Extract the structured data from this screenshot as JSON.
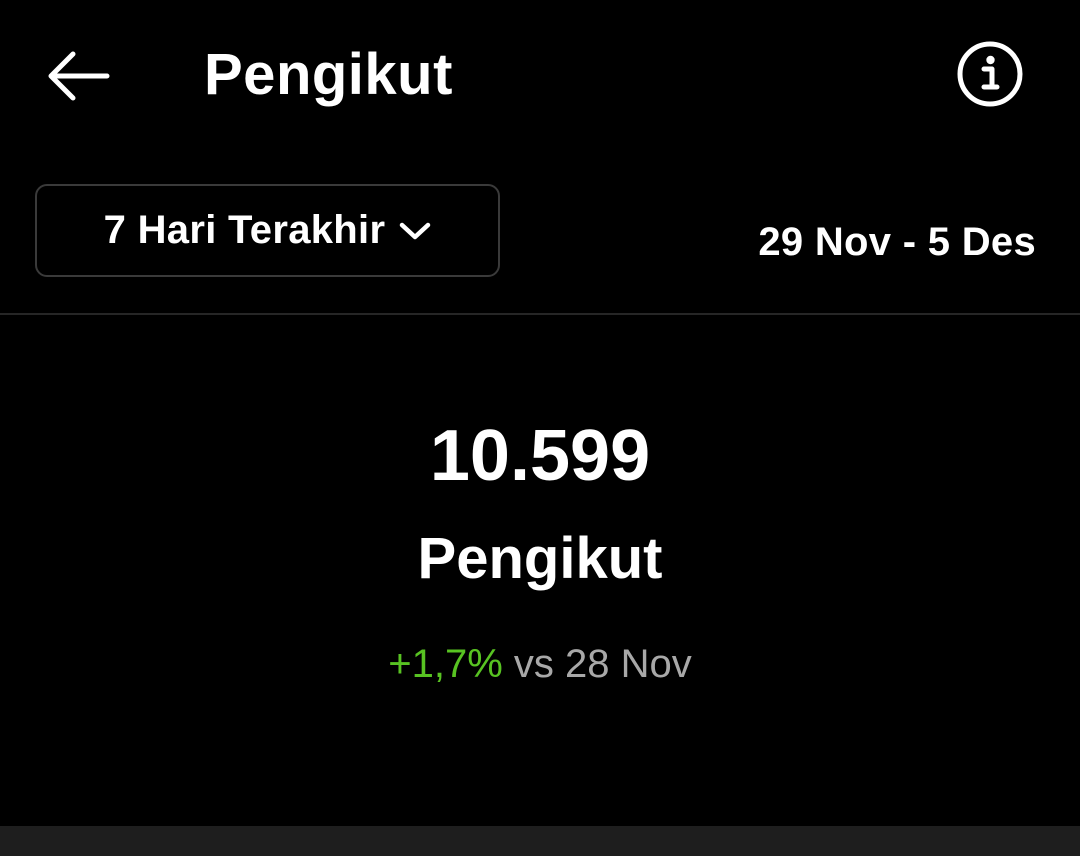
{
  "header": {
    "title": "Pengikut",
    "back_icon": "arrow-left-icon",
    "info_icon": "info-circle-icon"
  },
  "filter": {
    "range_label": "7 Hari Terakhir",
    "chevron_icon": "chevron-down-icon",
    "date_range": "29 Nov - 5 Des"
  },
  "stats": {
    "value": "10.599",
    "label": "Pengikut",
    "change_percent": "+1,7%",
    "change_text": " vs 28 Nov"
  },
  "colors": {
    "background": "#000000",
    "text": "#ffffff",
    "positive": "#58c322",
    "muted": "#a8a8a8"
  }
}
